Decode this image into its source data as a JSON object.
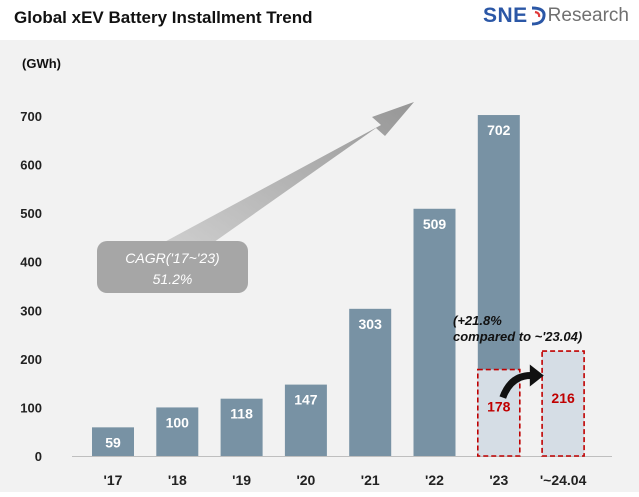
{
  "chart_data": {
    "type": "bar",
    "title": "Global xEV Battery Installment Trend",
    "ylabel": "(GWh)",
    "xlabel": "",
    "ylim": [
      0,
      700
    ],
    "yticks": [
      0,
      100,
      200,
      300,
      400,
      500,
      600,
      700
    ],
    "grid": false,
    "categories": [
      "'17",
      "'18",
      "'19",
      "'20",
      "'21",
      "'22",
      "'23",
      "'~24.04"
    ],
    "values": [
      59,
      100,
      118,
      147,
      303,
      509,
      702,
      216
    ],
    "partial_comparison": {
      "category": "'23",
      "value": 178,
      "compared_to": "'~24.04",
      "value_compared": 216,
      "label_line1": "(+21.8%",
      "label_line2": "compared to ~'23.04)"
    },
    "annotations": {
      "cagr_line1": "CAGR('17~'23)",
      "cagr_line2": "51.2%"
    },
    "colors": {
      "bar": "#7892a4",
      "partial_bar": "#d5dde5",
      "partial_border": "#c00000",
      "partial_label": "#c00000",
      "bar_label": "#ffffff",
      "arrow": "#a6a6a6",
      "background": "#f2f2f2"
    }
  },
  "logo": {
    "sne": "SNE",
    "research": "Research"
  }
}
